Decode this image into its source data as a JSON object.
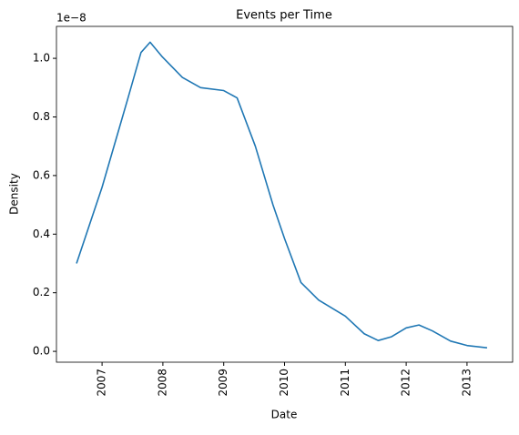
{
  "chart_data": {
    "type": "line",
    "title": "Events per Time",
    "xlabel": "Date",
    "ylabel": "Density",
    "y_offset_label": "1e−8",
    "x": [
      2006.58,
      2007,
      2007.42,
      2007.64,
      2007.79,
      2007.99,
      2008.32,
      2008.62,
      2009,
      2009.22,
      2009.52,
      2009.81,
      2010,
      2010.27,
      2010.56,
      2011,
      2011.31,
      2011.54,
      2011.76,
      2012,
      2012.21,
      2012.43,
      2012.73,
      2013,
      2013.33
    ],
    "series": [
      {
        "color": "#1f77b4",
        "values": [
          0.3,
          0.56,
          0.86,
          1.02,
          1.055,
          1.005,
          0.935,
          0.9,
          0.89,
          0.865,
          0.7,
          0.5,
          0.385,
          0.235,
          0.175,
          0.12,
          0.06,
          0.037,
          0.05,
          0.08,
          0.09,
          0.07,
          0.035,
          0.02,
          0.012
        ]
      }
    ],
    "xlim": [
      2006.25,
      2013.75
    ],
    "xticks": [
      2007,
      2008,
      2009,
      2010,
      2011,
      2012,
      2013
    ],
    "ylim": [
      -0.037,
      1.109
    ],
    "yticks": [
      {
        "value": 0,
        "label": "0.0"
      },
      0.2,
      0.4,
      0.6,
      0.8,
      {
        "value": 1,
        "label": "1.0"
      }
    ],
    "grid": false
  }
}
